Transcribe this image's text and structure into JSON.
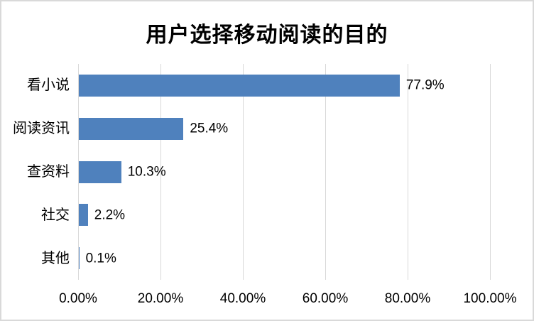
{
  "chart_data": {
    "type": "bar",
    "orientation": "horizontal",
    "title": "用户选择移动阅读的目的",
    "categories": [
      "看小说",
      "阅读资讯",
      "查资料",
      "社交",
      "其他"
    ],
    "values": [
      77.9,
      25.4,
      10.3,
      2.2,
      0.1
    ],
    "data_labels": [
      "77.9%",
      "25.4%",
      "10.3%",
      "2.2%",
      "0.1%"
    ],
    "x_axis": {
      "tick_labels": [
        "0.00%",
        "20.00%",
        "40.00%",
        "60.00%",
        "80.00%",
        "100.00%"
      ],
      "tick_values": [
        0,
        20,
        40,
        60,
        80,
        100
      ],
      "range": [
        0,
        100
      ]
    },
    "grid": "vertical-gridlines-only",
    "legend": "none",
    "colors": {
      "bar": "#4f81bd",
      "gridline": "#d9d9d9",
      "axis_line": "#d9d9d9",
      "text": "#000000",
      "background": "#ffffff",
      "border": "#d9d9d9"
    }
  }
}
